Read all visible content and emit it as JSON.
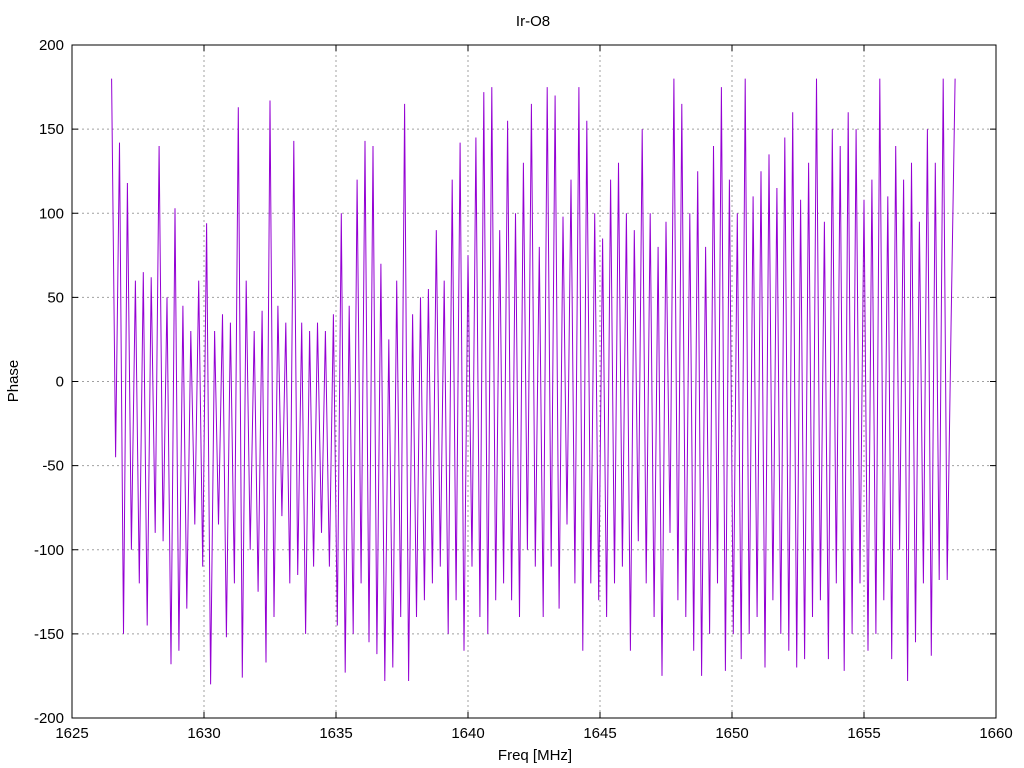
{
  "chart_data": {
    "type": "line",
    "title": "Ir-O8",
    "xlabel": "Freq [MHz]",
    "ylabel": "Phase",
    "xlim": [
      1625,
      1660
    ],
    "ylim": [
      -200,
      200
    ],
    "xticks": [
      "1625",
      "1630",
      "1635",
      "1640",
      "1645",
      "1650",
      "1655",
      "1660"
    ],
    "yticks": [
      "200",
      "150",
      "100",
      "50",
      "0",
      "-50",
      "-100",
      "-150",
      "-200"
    ],
    "grid": true,
    "series_color": "#9400d3",
    "series": [
      {
        "x": [
          1626.5,
          1626.65,
          1626.8,
          1626.95,
          1627.1,
          1627.25,
          1627.4,
          1627.55,
          1627.7,
          1627.85,
          1628.0,
          1628.15,
          1628.3,
          1628.45,
          1628.6,
          1628.75,
          1628.9,
          1629.05,
          1629.2,
          1629.35,
          1629.5,
          1629.65,
          1629.8,
          1629.95,
          1630.1,
          1630.25,
          1630.4,
          1630.55,
          1630.7,
          1630.85,
          1631.0,
          1631.15,
          1631.3,
          1631.45,
          1631.6,
          1631.75,
          1631.9,
          1632.05,
          1632.2,
          1632.35,
          1632.5,
          1632.65,
          1632.8,
          1632.95,
          1633.1,
          1633.25,
          1633.4,
          1633.55,
          1633.7,
          1633.85,
          1634.0,
          1634.15,
          1634.3,
          1634.45,
          1634.6,
          1634.75,
          1634.9,
          1635.05,
          1635.2,
          1635.35,
          1635.5,
          1635.65,
          1635.8,
          1635.95,
          1636.1,
          1636.25,
          1636.4,
          1636.55,
          1636.7,
          1636.85,
          1637.0,
          1637.15,
          1637.3,
          1637.45,
          1637.6,
          1637.75,
          1637.9,
          1638.05,
          1638.2,
          1638.35,
          1638.5,
          1638.65,
          1638.8,
          1638.95,
          1639.1,
          1639.25,
          1639.4,
          1639.55,
          1639.7,
          1639.85,
          1640.0,
          1640.15,
          1640.3,
          1640.45,
          1640.6,
          1640.75,
          1640.9,
          1641.05,
          1641.2,
          1641.35,
          1641.5,
          1641.65,
          1641.8,
          1641.95,
          1642.1,
          1642.25,
          1642.4,
          1642.55,
          1642.7,
          1642.85,
          1643.0,
          1643.15,
          1643.3,
          1643.45,
          1643.6,
          1643.75,
          1643.9,
          1644.05,
          1644.2,
          1644.35,
          1644.5,
          1644.65,
          1644.8,
          1644.95,
          1645.1,
          1645.25,
          1645.4,
          1645.55,
          1645.7,
          1645.85,
          1646.0,
          1646.15,
          1646.3,
          1646.45,
          1646.6,
          1646.75,
          1646.9,
          1647.05,
          1647.2,
          1647.35,
          1647.5,
          1647.65,
          1647.8,
          1647.95,
          1648.1,
          1648.25,
          1648.4,
          1648.55,
          1648.7,
          1648.85,
          1649.0,
          1649.15,
          1649.3,
          1649.45,
          1649.6,
          1649.75,
          1649.9,
          1650.05,
          1650.2,
          1650.35,
          1650.5,
          1650.65,
          1650.8,
          1650.95,
          1651.1,
          1651.25,
          1651.4,
          1651.55,
          1651.7,
          1651.85,
          1652.0,
          1652.15,
          1652.3,
          1652.45,
          1652.6,
          1652.75,
          1652.9,
          1653.05,
          1653.2,
          1653.35,
          1653.5,
          1653.65,
          1653.8,
          1653.95,
          1654.1,
          1654.25,
          1654.4,
          1654.55,
          1654.7,
          1654.85,
          1655.0,
          1655.15,
          1655.3,
          1655.45,
          1655.6,
          1655.75,
          1655.9,
          1656.05,
          1656.2,
          1656.35,
          1656.5,
          1656.65,
          1656.8,
          1656.95,
          1657.1,
          1657.25,
          1657.4,
          1657.55,
          1657.7,
          1657.85,
          1658.0,
          1658.15,
          1658.3,
          1658.45
        ],
        "y": [
          180,
          -45,
          142,
          -150,
          118,
          -100,
          60,
          -120,
          65,
          -145,
          62,
          -90,
          140,
          -95,
          50,
          -168,
          103,
          -160,
          45,
          -135,
          30,
          -85,
          60,
          -110,
          94,
          -180,
          30,
          -85,
          40,
          -152,
          35,
          -120,
          163,
          -176,
          60,
          -100,
          30,
          -125,
          42,
          -167,
          167,
          -140,
          45,
          -80,
          35,
          -120,
          143,
          -115,
          35,
          -150,
          30,
          -110,
          35,
          -90,
          30,
          -110,
          40,
          -145,
          100,
          -173,
          45,
          -150,
          120,
          -120,
          143,
          -155,
          140,
          -162,
          70,
          -178,
          25,
          -170,
          60,
          -140,
          165,
          -178,
          40,
          -140,
          50,
          -130,
          55,
          -120,
          90,
          -110,
          60,
          -150,
          120,
          -130,
          142,
          -160,
          75,
          -110,
          145,
          -140,
          172,
          -150,
          175,
          -130,
          90,
          -120,
          155,
          -130,
          100,
          -140,
          130,
          -100,
          165,
          -110,
          80,
          -140,
          175,
          -110,
          170,
          -135,
          98,
          -85,
          120,
          -120,
          175,
          -160,
          155,
          -120,
          100,
          -130,
          85,
          -140,
          120,
          -120,
          130,
          -110,
          100,
          -160,
          90,
          -95,
          150,
          -120,
          100,
          -140,
          80,
          -175,
          95,
          -90,
          180,
          -130,
          165,
          -140,
          100,
          -160,
          125,
          -175,
          80,
          -150,
          140,
          -120,
          175,
          -172,
          120,
          -150,
          100,
          -165,
          180,
          -150,
          110,
          -140,
          125,
          -170,
          135,
          -130,
          115,
          -150,
          145,
          -160,
          160,
          -170,
          108,
          -165,
          130,
          -140,
          180,
          -130,
          95,
          -165,
          150,
          -120,
          140,
          -172,
          160,
          -150,
          150,
          -120,
          108,
          -160,
          120,
          -150,
          180,
          -130,
          110,
          -165,
          140,
          -100,
          120,
          -178,
          130,
          -155,
          95,
          -120,
          150,
          -163,
          130,
          -118,
          180,
          -118,
          35,
          180
        ]
      }
    ]
  }
}
